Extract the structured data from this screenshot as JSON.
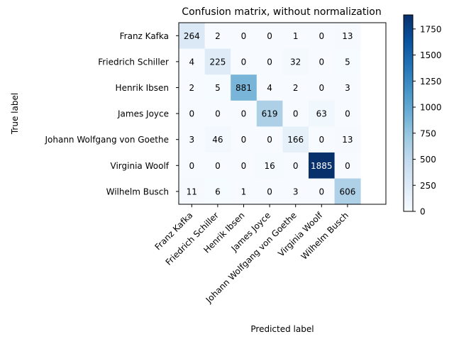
{
  "chart_data": {
    "type": "heatmap",
    "title": "Confusion matrix, without normalization",
    "xlabel": "Predicted label",
    "ylabel": "True label",
    "row_labels": [
      "Franz Kafka",
      "Friedrich Schiller",
      "Henrik Ibsen",
      "James Joyce",
      "Johann Wolfgang von Goethe",
      "Virginia Woolf",
      "Wilhelm Busch"
    ],
    "col_labels": [
      "Franz Kafka",
      "Friedrich Schiller",
      "Henrik Ibsen",
      "James Joyce",
      "Johann Wolfgang von Goethe",
      "Virginia Woolf",
      "Wilhelm Busch"
    ],
    "matrix": [
      [
        264,
        2,
        0,
        0,
        1,
        0,
        13
      ],
      [
        4,
        225,
        0,
        0,
        32,
        0,
        5
      ],
      [
        2,
        5,
        881,
        4,
        2,
        0,
        3
      ],
      [
        0,
        0,
        0,
        619,
        0,
        63,
        0
      ],
      [
        3,
        46,
        0,
        0,
        166,
        0,
        13
      ],
      [
        0,
        0,
        0,
        16,
        0,
        1885,
        0
      ],
      [
        11,
        6,
        1,
        0,
        3,
        0,
        606
      ]
    ],
    "colormap": "Blues",
    "value_range": [
      0,
      1885
    ],
    "colorbar_ticks": [
      0,
      250,
      500,
      750,
      1000,
      1250,
      1500,
      1750
    ],
    "colorbar_tick_labels": [
      "0",
      "250",
      "500",
      "750",
      "1000",
      "1250",
      "1500",
      "1750"
    ]
  }
}
